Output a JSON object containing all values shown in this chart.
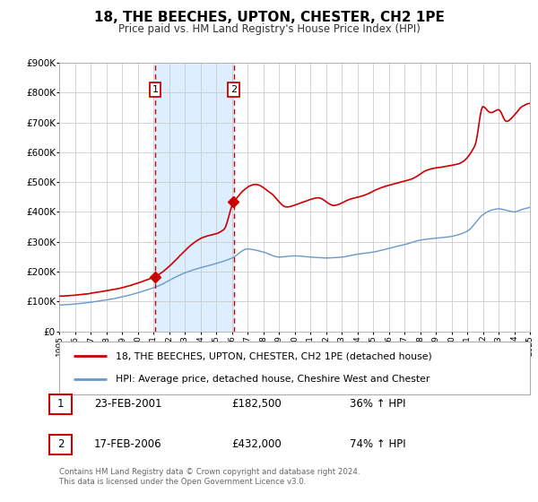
{
  "title": "18, THE BEECHES, UPTON, CHESTER, CH2 1PE",
  "subtitle": "Price paid vs. HM Land Registry's House Price Index (HPI)",
  "ylim": [
    0,
    900000
  ],
  "xlim": [
    1995,
    2025
  ],
  "yticks": [
    0,
    100000,
    200000,
    300000,
    400000,
    500000,
    600000,
    700000,
    800000,
    900000
  ],
  "ytick_labels": [
    "£0",
    "£100K",
    "£200K",
    "£300K",
    "£400K",
    "£500K",
    "£600K",
    "£700K",
    "£800K",
    "£900K"
  ],
  "sale1_x": 2001.12,
  "sale1_price": 182500,
  "sale1_label": "1",
  "sale1_text": "23-FEB-2001",
  "sale1_amount": "£182,500",
  "sale1_pct": "36% ↑ HPI",
  "sale2_x": 2006.12,
  "sale2_price": 432000,
  "sale2_label": "2",
  "sale2_text": "17-FEB-2006",
  "sale2_amount": "£432,000",
  "sale2_pct": "74% ↑ HPI",
  "property_color": "#cc0000",
  "hpi_color": "#6699cc",
  "shade_color": "#ddeeff",
  "grid_color": "#cccccc",
  "legend_line1": "18, THE BEECHES, UPTON, CHESTER, CH2 1PE (detached house)",
  "legend_line2": "HPI: Average price, detached house, Cheshire West and Chester",
  "footnote1": "Contains HM Land Registry data © Crown copyright and database right 2024.",
  "footnote2": "This data is licensed under the Open Government Licence v3.0.",
  "background_color": "#ffffff"
}
